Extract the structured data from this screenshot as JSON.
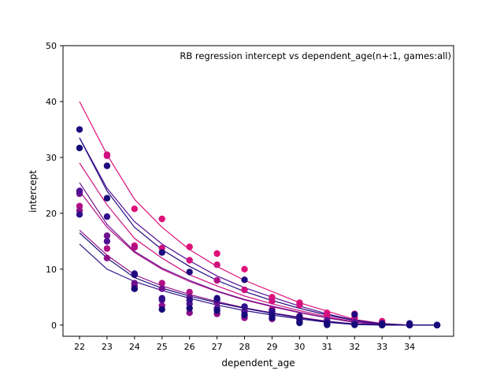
{
  "chart_data": {
    "type": "scatter",
    "title": "RB regression intercept vs dependent_age(n+:1, games:all)",
    "xlabel": "dependent_age",
    "ylabel": "intercept",
    "xlim": [
      21.4,
      35.6
    ],
    "ylim": [
      -2,
      50
    ],
    "xticks": [
      22,
      23,
      24,
      25,
      26,
      27,
      28,
      29,
      30,
      31,
      32,
      33,
      34
    ],
    "yticks": [
      0,
      10,
      20,
      30,
      40,
      50
    ],
    "grid": false,
    "legend": "none",
    "series": [
      {
        "color": "#e0107a",
        "x": [
          22,
          23,
          24,
          25,
          26,
          27,
          28,
          29,
          30,
          31,
          32,
          33,
          34,
          35
        ],
        "y": [
          40,
          30.5,
          22.5,
          17.5,
          13.5,
          10.5,
          8,
          6,
          4,
          2.5,
          1,
          0.3,
          0,
          0
        ],
        "fit_x": [
          22,
          23,
          24,
          25,
          26,
          27,
          28,
          29,
          30,
          31,
          32,
          33,
          34,
          35
        ],
        "fit_y": [
          40,
          30.5,
          22.5,
          17.5,
          13.5,
          10.5,
          8,
          6,
          4,
          2.5,
          1,
          0.3,
          0,
          0
        ],
        "scatter_x": [
          23,
          24,
          25,
          26,
          27,
          28,
          29,
          30,
          31,
          32,
          33,
          34,
          35
        ],
        "scatter_y": [
          30.5,
          20.8,
          19,
          14,
          12.8,
          10,
          5,
          4,
          2.2,
          2,
          0.7,
          0.1,
          0
        ]
      },
      {
        "color": "#d0107e",
        "x": [
          22,
          23,
          24,
          25,
          26,
          27,
          28,
          29,
          30,
          31,
          32,
          33,
          34,
          35
        ],
        "y": [
          29,
          21.5,
          15.5,
          12,
          9,
          7,
          5.2,
          3.8,
          2.6,
          1.5,
          0.6,
          0.1,
          0,
          0
        ],
        "fit_x": [
          22,
          23,
          24,
          25,
          26,
          27,
          28,
          29,
          30,
          31,
          32,
          33,
          34,
          35
        ],
        "fit_y": [
          29,
          21.5,
          15.5,
          12,
          9,
          7,
          5.2,
          3.8,
          2.6,
          1.5,
          0.6,
          0.1,
          0,
          0
        ],
        "scatter_x": [
          23,
          24,
          25,
          26,
          27,
          28,
          29,
          30,
          31,
          32,
          33,
          34,
          35
        ],
        "scatter_y": [
          30.3,
          14.2,
          13.8,
          11.6,
          10.8,
          6.3,
          4.3,
          3.6,
          1.8,
          1.3,
          0.4,
          0.1,
          0
        ]
      },
      {
        "color": "#b01085",
        "x": [
          22,
          23,
          24,
          25,
          26,
          27,
          28,
          29,
          30,
          31,
          32,
          33,
          34,
          35
        ],
        "y": [
          24,
          17.5,
          13,
          10,
          7.8,
          6,
          4.5,
          3.3,
          2.2,
          1.3,
          0.5,
          0.1,
          0,
          0
        ],
        "fit_x": [
          22,
          23,
          24,
          25,
          26,
          27,
          28,
          29,
          30,
          31,
          32,
          33,
          34,
          35
        ],
        "fit_y": [
          24,
          17.5,
          13,
          10,
          7.8,
          6,
          4.5,
          3.3,
          2.2,
          1.3,
          0.5,
          0.1,
          0,
          0
        ],
        "scatter_x": [
          22,
          23,
          24,
          25,
          26,
          27,
          28,
          29,
          30,
          31,
          32,
          33,
          34,
          35
        ],
        "scatter_y": [
          21.3,
          13.7,
          13.9,
          7.5,
          5.9,
          8,
          2.5,
          2.8,
          1.2,
          0.9,
          0.3,
          0.05,
          0,
          0
        ]
      },
      {
        "color": "#90108a",
        "x": [
          22,
          23,
          24,
          25,
          26,
          27,
          28,
          29,
          30,
          31,
          32,
          33,
          34,
          35
        ],
        "y": [
          17,
          12.5,
          9,
          7,
          5.5,
          4.2,
          3.1,
          2.2,
          1.4,
          0.7,
          0.2,
          0.05,
          0,
          0
        ],
        "fit_x": [
          22,
          23,
          24,
          25,
          26,
          27,
          28,
          29,
          30,
          31,
          32,
          33,
          34,
          35
        ],
        "fit_y": [
          17,
          12.5,
          9,
          7,
          5.5,
          4.2,
          3.1,
          2.2,
          1.4,
          0.7,
          0.2,
          0.05,
          0,
          0
        ],
        "scatter_x": [
          22,
          23,
          24,
          25,
          26,
          27,
          28,
          29,
          30,
          31,
          32,
          33,
          34,
          35
        ],
        "scatter_y": [
          20.5,
          12,
          7,
          3.5,
          2.2,
          2,
          1.3,
          1.1,
          0.6,
          0.3,
          0.1,
          0,
          0,
          0
        ]
      },
      {
        "color": "#701090",
        "x": [
          22,
          23,
          24,
          25,
          26,
          27,
          28,
          29,
          30,
          31,
          32,
          33,
          34,
          35
        ],
        "y": [
          25.5,
          18,
          13.2,
          10.2,
          8,
          6.1,
          4.6,
          3.4,
          2.3,
          1.3,
          0.5,
          0.1,
          0,
          0
        ],
        "fit_x": [
          22,
          23,
          24,
          25,
          26,
          27,
          28,
          29,
          30,
          31,
          32,
          33,
          34,
          35
        ],
        "fit_y": [
          25.5,
          18,
          13.2,
          10.2,
          8,
          6.1,
          4.6,
          3.4,
          2.3,
          1.3,
          0.5,
          0.1,
          0,
          0
        ],
        "scatter_x": [
          22,
          23,
          24,
          25,
          26,
          27,
          28,
          29,
          30,
          31,
          32,
          33,
          34,
          35
        ],
        "scatter_y": [
          23.5,
          16,
          7.5,
          6.5,
          5,
          4,
          3.3,
          2.5,
          1.6,
          0.5,
          0.6,
          0.05,
          0,
          0
        ]
      },
      {
        "color": "#501095",
        "x": [
          22,
          23,
          24,
          25,
          26,
          27,
          28,
          29,
          30,
          31,
          32,
          33,
          34,
          35
        ],
        "y": [
          33.5,
          24.5,
          18.5,
          14.5,
          11.5,
          8.8,
          6.7,
          5,
          3.4,
          2,
          0.9,
          0.2,
          0,
          0
        ],
        "fit_x": [
          22,
          23,
          24,
          25,
          26,
          27,
          28,
          29,
          30,
          31,
          32,
          33,
          34,
          35
        ],
        "fit_y": [
          33.5,
          24.5,
          18.5,
          14.5,
          11.5,
          8.8,
          6.7,
          5,
          3.4,
          2,
          0.9,
          0.2,
          0,
          0
        ],
        "scatter_x": [
          22,
          23,
          24,
          25,
          26,
          27,
          28,
          29,
          30,
          31,
          32,
          33,
          34,
          35
        ],
        "scatter_y": [
          24,
          15,
          6.5,
          4.5,
          3.8,
          3,
          2.4,
          1.8,
          1.1,
          0.8,
          0.3,
          0.05,
          0,
          0
        ]
      },
      {
        "color": "#30108a",
        "x": [
          22,
          23,
          24,
          25,
          26,
          27,
          28,
          29,
          30,
          31,
          32,
          33,
          34,
          35
        ],
        "y": [
          14.5,
          10,
          7.8,
          6.2,
          4.8,
          3.6,
          2.6,
          1.8,
          1.1,
          0.5,
          0.1,
          0,
          0,
          0
        ],
        "fit_x": [
          22,
          23,
          24,
          25,
          26,
          27,
          28,
          29,
          30,
          31,
          32,
          33,
          34,
          35
        ],
        "fit_y": [
          14.5,
          10,
          7.8,
          6.2,
          4.8,
          3.6,
          2.6,
          1.8,
          1.1,
          0.5,
          0.1,
          0,
          0,
          0
        ],
        "scatter_x": [
          22,
          23,
          24,
          25,
          26,
          27,
          28,
          29,
          30,
          31,
          32,
          33,
          34,
          35
        ],
        "scatter_y": [
          19.8,
          19.4,
          9.2,
          4.8,
          4.5,
          4.6,
          3.3,
          2.5,
          1,
          0.2,
          0.1,
          0,
          0,
          0
        ]
      },
      {
        "color": "#200a80",
        "x": [
          22,
          23,
          24,
          25,
          26,
          27,
          28,
          29,
          30,
          31,
          32,
          33,
          34,
          35
        ],
        "y": [
          33.5,
          24,
          17.5,
          13.5,
          10.5,
          8,
          6,
          4.4,
          3,
          1.8,
          0.8,
          0.2,
          0,
          0
        ],
        "fit_x": [
          22,
          23,
          24,
          25,
          26,
          27,
          28,
          29,
          30,
          31,
          32,
          33,
          34,
          35
        ],
        "fit_y": [
          33.5,
          24,
          17.5,
          13.5,
          10.5,
          8,
          6,
          4.4,
          3,
          1.8,
          0.8,
          0.2,
          0,
          0
        ],
        "scatter_x": [
          22,
          23,
          24,
          25,
          26,
          27,
          28,
          29,
          30,
          31,
          32,
          33,
          34,
          35
        ],
        "scatter_y": [
          35,
          28.5,
          9,
          13,
          9.5,
          4.8,
          8.1,
          2,
          1.5,
          0.4,
          1.9,
          0.3,
          0.3,
          0
        ]
      },
      {
        "color": "#150a78",
        "x": [
          22,
          23,
          24,
          25,
          26,
          27,
          28,
          29,
          30,
          31,
          32,
          33,
          34,
          35
        ],
        "y": [
          16.5,
          12,
          8.5,
          6.6,
          5.2,
          4,
          3,
          2.1,
          1.3,
          0.6,
          0.2,
          0,
          0,
          0
        ],
        "fit_x": [
          22,
          23,
          24,
          25,
          26,
          27,
          28,
          29,
          30,
          31,
          32,
          33,
          34,
          35
        ],
        "fit_y": [
          16.5,
          12,
          8.5,
          6.6,
          5.2,
          4,
          3,
          2.1,
          1.3,
          0.6,
          0.2,
          0,
          0,
          0
        ],
        "scatter_x": [
          22,
          23,
          24,
          25,
          26,
          27,
          28,
          29,
          30,
          31,
          32,
          33,
          34,
          35
        ],
        "scatter_y": [
          31.7,
          22.7,
          6.5,
          2.8,
          3,
          2.6,
          1.8,
          1.3,
          0.4,
          0.05,
          0.05,
          0,
          0,
          0
        ]
      }
    ]
  }
}
